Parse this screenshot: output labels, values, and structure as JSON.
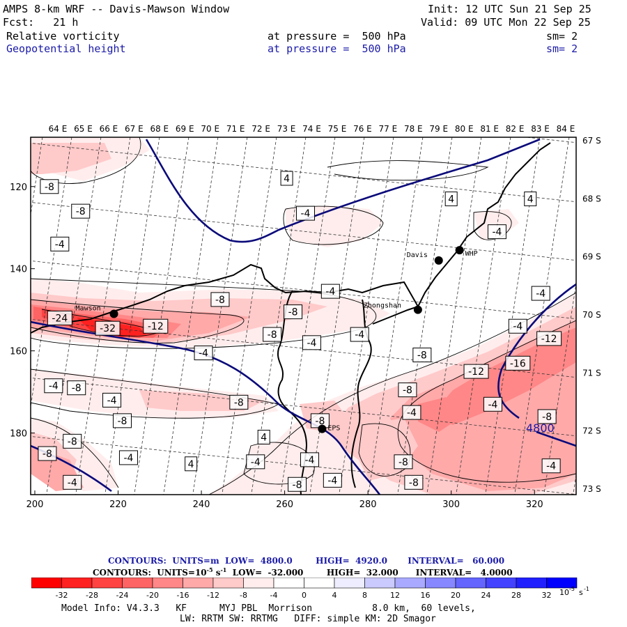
{
  "header": {
    "title": "AMPS 8-km WRF -- Davis-Mawson Window",
    "init": "Init: 12 UTC Sun 21 Sep 25",
    "fcst": "Fcst:   21 h",
    "valid": "Valid: 09 UTC Mon 22 Sep 25",
    "field1": "Relative vorticity",
    "field1_level": "at pressure =  500 hPa",
    "field1_sm": "sm= 2",
    "field2": "Geopotential height",
    "field2_level": "at pressure =  500 hPa",
    "field2_sm": "sm= 2"
  },
  "colors": {
    "neg1": "#ff0000",
    "neg2": "#ff2020",
    "neg3": "#ff4343",
    "neg4": "#ff6464",
    "neg5": "#ff8787",
    "neg6": "#ffa9a9",
    "neg7": "#ffcaca",
    "neg8": "#ffeded",
    "geopotential_line": "#0a0a7a",
    "pos_low": "#ededff",
    "pos_high": "#0000ff"
  },
  "chart_data": {
    "type": "contour-map",
    "x_ticks": [
      "200",
      "220",
      "240",
      "260",
      "280",
      "300",
      "320"
    ],
    "x_range": [
      199,
      330
    ],
    "y_ticks": [
      "120",
      "140",
      "160",
      "180"
    ],
    "y_range": [
      108,
      195
    ],
    "lon_labels": [
      "64 E",
      "65 E",
      "66 E",
      "67 E",
      "68 E",
      "69 E",
      "70 E",
      "71 E",
      "72 E",
      "73 E",
      "74 E",
      "75 E",
      "76 E",
      "77 E",
      "78 E",
      "79 E",
      "80 E",
      "81 E",
      "82 E",
      "83 E",
      "84 E"
    ],
    "lat_labels": [
      "67 S",
      "68 S",
      "69 S",
      "70 S",
      "71 S",
      "72 S",
      "73 S"
    ],
    "stations": [
      {
        "name": "Mawson",
        "x": 219,
        "y": 151
      },
      {
        "name": "Davis",
        "x": 297,
        "y": 138
      },
      {
        "name": "WHP",
        "x": 302,
        "y": 135.5
      },
      {
        "name": "Zhongshan",
        "x": 292,
        "y": 150
      },
      {
        "name": "EPS",
        "x": 269,
        "y": 179
      }
    ],
    "geopotential_height": {
      "units": "m",
      "low": 4800.0,
      "high": 4920.0,
      "interval": 60.0,
      "annotation": "4800"
    },
    "vorticity": {
      "units": "10^-5 s^-1",
      "low": -32.0,
      "high": 32.0,
      "interval": 4.0,
      "contour_labels": [
        {
          "text": "-8",
          "x": 203.5,
          "y": 120
        },
        {
          "text": "-8",
          "x": 211,
          "y": 126
        },
        {
          "text": "-4",
          "x": 206,
          "y": 134
        },
        {
          "text": "4",
          "x": 260.5,
          "y": 118
        },
        {
          "text": "-4",
          "x": 265,
          "y": 126.5
        },
        {
          "text": "4",
          "x": 300,
          "y": 123
        },
        {
          "text": "4",
          "x": 319,
          "y": 123
        },
        {
          "text": "-4",
          "x": 311,
          "y": 131
        },
        {
          "text": "-24",
          "x": 206,
          "y": 152
        },
        {
          "text": "-32",
          "x": 217.5,
          "y": 154.5
        },
        {
          "text": "-12",
          "x": 229,
          "y": 154
        },
        {
          "text": "-8",
          "x": 244.5,
          "y": 147.5
        },
        {
          "text": "-4",
          "x": 271,
          "y": 145.5
        },
        {
          "text": "-8",
          "x": 262,
          "y": 150.5
        },
        {
          "text": "-8",
          "x": 257,
          "y": 156
        },
        {
          "text": "-4",
          "x": 266.5,
          "y": 158
        },
        {
          "text": "-4",
          "x": 278,
          "y": 156
        },
        {
          "text": "-4",
          "x": 240.5,
          "y": 160.5
        },
        {
          "text": "-8",
          "x": 293,
          "y": 161
        },
        {
          "text": "-4",
          "x": 321.5,
          "y": 146
        },
        {
          "text": "-4",
          "x": 316,
          "y": 154
        },
        {
          "text": "-12",
          "x": 323.5,
          "y": 157
        },
        {
          "text": "-12",
          "x": 306,
          "y": 165
        },
        {
          "text": "-16",
          "x": 316,
          "y": 163
        },
        {
          "text": "-8",
          "x": 289.5,
          "y": 169.5
        },
        {
          "text": "-4",
          "x": 204.5,
          "y": 168.5
        },
        {
          "text": "-8",
          "x": 210,
          "y": 169
        },
        {
          "text": "-4",
          "x": 218.5,
          "y": 172
        },
        {
          "text": "-8",
          "x": 249,
          "y": 172.5
        },
        {
          "text": "-4",
          "x": 290.5,
          "y": 175
        },
        {
          "text": "-8",
          "x": 221,
          "y": 177
        },
        {
          "text": "-8",
          "x": 268.5,
          "y": 177
        },
        {
          "text": "-4",
          "x": 310,
          "y": 173
        },
        {
          "text": "-8",
          "x": 323,
          "y": 176
        },
        {
          "text": "4",
          "x": 255,
          "y": 181
        },
        {
          "text": "-8",
          "x": 209,
          "y": 182
        },
        {
          "text": "-8",
          "x": 203,
          "y": 185
        },
        {
          "text": "-4",
          "x": 222.5,
          "y": 186
        },
        {
          "text": "-4",
          "x": 253,
          "y": 187
        },
        {
          "text": "-4",
          "x": 266,
          "y": 186.5
        },
        {
          "text": "4",
          "x": 237.5,
          "y": 187.5
        },
        {
          "text": "-8",
          "x": 288.5,
          "y": 187
        },
        {
          "text": "-4",
          "x": 324,
          "y": 188
        },
        {
          "text": "-4",
          "x": 209,
          "y": 192
        },
        {
          "text": "-4",
          "x": 271.5,
          "y": 191.5
        },
        {
          "text": "-8",
          "x": 291,
          "y": 192
        },
        {
          "text": "-8",
          "x": 263,
          "y": 192.5
        }
      ]
    }
  },
  "legend": {
    "contours_gph": "CONTOURS:  UNITS=m  LOW=  4800.0        HIGH=  4920.0       INTERVAL=   60.000",
    "contours_vort": "CONTOURS:  UNITS=10",
    "contours_vort_exp": "-5",
    "contours_vort_rest": " s",
    "contours_vort_exp2": "-1",
    "contours_vort_tail": "  LOW=  -32.000        HIGH=  32.000      INTERVAL=   4.0000",
    "colorbar_ticks": [
      "-32",
      "-28",
      "-24",
      "-20",
      "-16",
      "-12",
      "-8",
      "-4",
      "0",
      "4",
      "8",
      "12",
      "16",
      "20",
      "24",
      "28",
      "32"
    ],
    "colorbar_colors": [
      "#ff0000",
      "#ff2020",
      "#ff4343",
      "#ff6464",
      "#ff8787",
      "#ffa9a9",
      "#ffcaca",
      "#ffeded",
      "#ffffff",
      "#ffffff",
      "#ededff",
      "#cacaff",
      "#a9a9ff",
      "#8787ff",
      "#6464ff",
      "#4343ff",
      "#2020ff",
      "#0000ff"
    ],
    "colorbar_unit": "10",
    "colorbar_unit_exp": "-5",
    "colorbar_unit_s": "s",
    "colorbar_unit_exp2": "-1"
  },
  "footer": {
    "model_info": "Model Info: V4.3.3   KF      MYJ PBL  Morrison           8.0 km,  60 levels,",
    "physics_info": "LW: RRTM SW: RRTMG   DIFF: simple KM: 2D Smagor"
  }
}
